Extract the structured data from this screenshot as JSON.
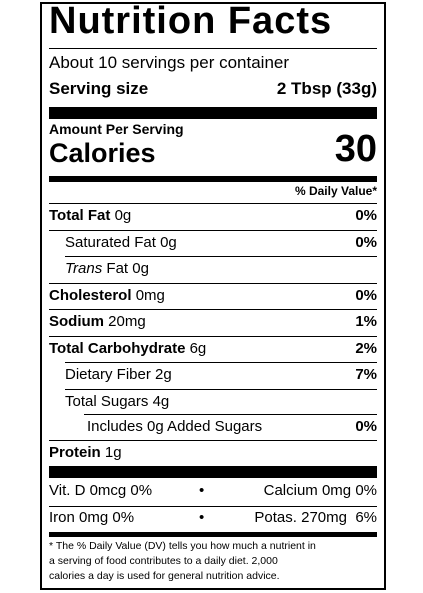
{
  "title": "Nutrition Facts",
  "servings_per_container": "About 10 servings per container",
  "serving_size_label": "Serving size",
  "serving_size_value": "2 Tbsp (33g)",
  "amount_per_serving": "Amount Per Serving",
  "calories_label": "Calories",
  "calories_value": "30",
  "daily_value_header": "% Daily Value*",
  "nutrients": {
    "total_fat": {
      "name": "Total Fat",
      "amount": "0g",
      "dv": "0%"
    },
    "saturated_fat": {
      "name": "Saturated Fat",
      "amount": "0g",
      "dv": "0%"
    },
    "trans_fat": {
      "name_italic": "Trans",
      "name": "Fat",
      "amount": "0g"
    },
    "cholesterol": {
      "name": "Cholesterol",
      "amount": "0mg",
      "dv": "0%"
    },
    "sodium": {
      "name": "Sodium",
      "amount": "20mg",
      "dv": "1%"
    },
    "total_carbohydrate": {
      "name": "Total Carbohydrate",
      "amount": "6g",
      "dv": "2%"
    },
    "dietary_fiber": {
      "name": "Dietary Fiber",
      "amount": "2g",
      "dv": "7%"
    },
    "total_sugars": {
      "name": "Total Sugars",
      "amount": "4g"
    },
    "added_sugars": {
      "text": "Includes 0g Added Sugars",
      "dv": "0%"
    },
    "protein": {
      "name": "Protein",
      "amount": "1g"
    }
  },
  "vitamins": {
    "vit_d": "Vit. D 0mcg 0%",
    "calcium": "Calcium 0mg 0%",
    "iron": "Iron 0mg 0%",
    "potassium": "Potas. 270mg  6%",
    "separator": "•"
  },
  "footnote": {
    "line1": "* The % Daily Value (DV) tells you how much a nutrient in",
    "line2": "a serving of food contributes to a daily diet. 2,000",
    "line3": "calories a day is used for general nutrition advice."
  }
}
